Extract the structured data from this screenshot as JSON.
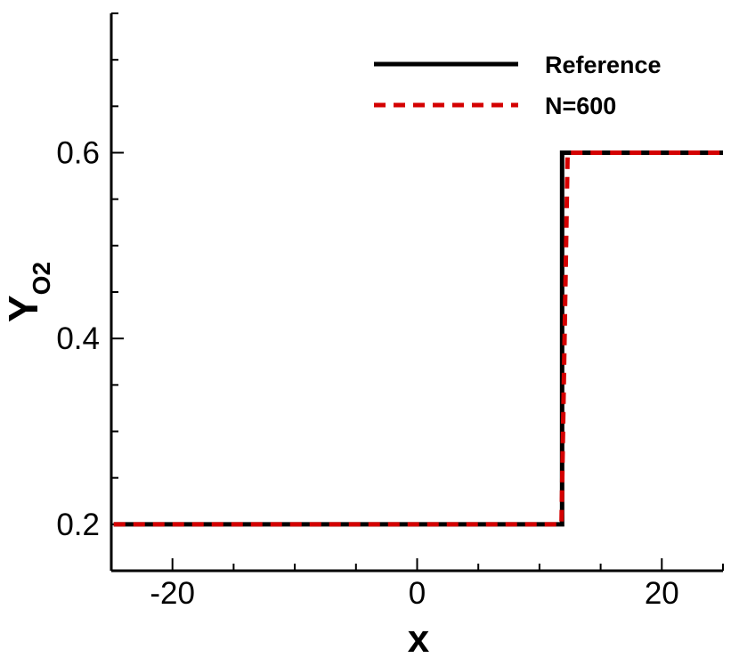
{
  "chart_data": {
    "type": "line",
    "xlabel": "x",
    "ylabel": {
      "base": "Y",
      "sub": "O2"
    },
    "xlim": [
      -25,
      25
    ],
    "ylim": [
      0.15,
      0.75
    ],
    "xticks": [
      -20,
      0,
      20
    ],
    "xtick_labels": [
      "-20",
      "0",
      "20"
    ],
    "yticks": [
      0.2,
      0.4,
      0.6
    ],
    "ytick_labels": [
      "0.2",
      "0.4",
      "0.6"
    ],
    "x_minor_step": 5,
    "y_minor_step": 0.05,
    "grid": false,
    "legend": "top-right",
    "series": [
      {
        "name": "Reference",
        "color": "#000000",
        "style": "solid",
        "x": [
          -24.8,
          11.85,
          11.85,
          25
        ],
        "y": [
          0.2,
          0.2,
          0.6,
          0.6
        ]
      },
      {
        "name": "N=600",
        "color": "#d40000",
        "style": "dashed",
        "x": [
          -24.8,
          11.8,
          12.3,
          25
        ],
        "y": [
          0.2,
          0.2,
          0.6,
          0.6
        ]
      }
    ]
  }
}
